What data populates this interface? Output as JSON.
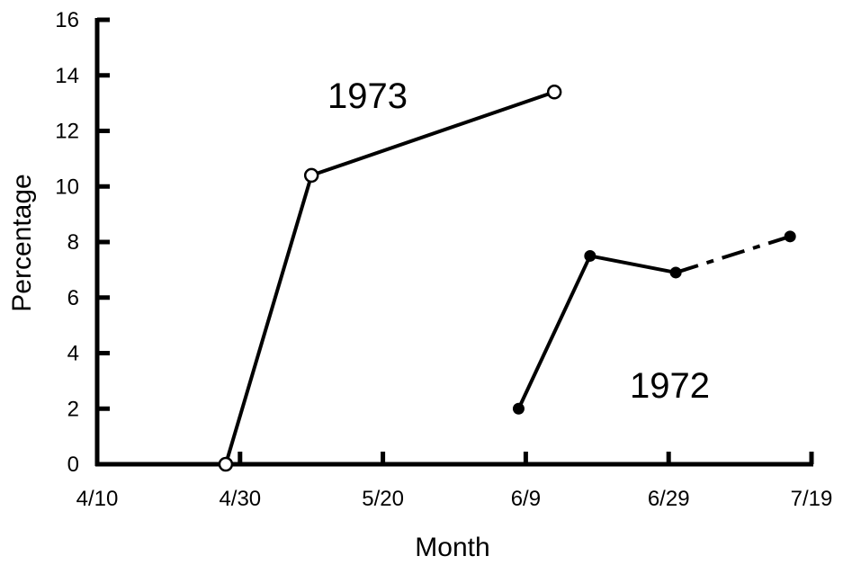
{
  "chart_data": {
    "type": "line",
    "xlabel": "Month",
    "ylabel": "Percentage",
    "x_ticks": [
      "4/10",
      "4/30",
      "5/20",
      "6/9",
      "6/29",
      "7/19"
    ],
    "y_ticks": [
      "0",
      "2",
      "4",
      "6",
      "8",
      "10",
      "12",
      "14",
      "16"
    ],
    "x_unit": "days since 4/10 (tick every 20 days)",
    "xlim": [
      0,
      100
    ],
    "ylim": [
      0,
      16
    ],
    "grid": false,
    "series": [
      {
        "name": "1973",
        "marker": "open-circle",
        "points": [
          {
            "x": "4/28",
            "y": 0
          },
          {
            "x": "5/10",
            "y": 10.4
          },
          {
            "x": "6/13",
            "y": 13.4
          }
        ]
      },
      {
        "name": "1972",
        "marker": "filled-circle",
        "points": [
          {
            "x": "6/8",
            "y": 2.0
          },
          {
            "x": "6/18",
            "y": 7.5
          },
          {
            "x": "6/30",
            "y": 6.9
          },
          {
            "x": "7/16",
            "y": 8.2
          }
        ],
        "dashed_last_segment": true
      }
    ]
  }
}
